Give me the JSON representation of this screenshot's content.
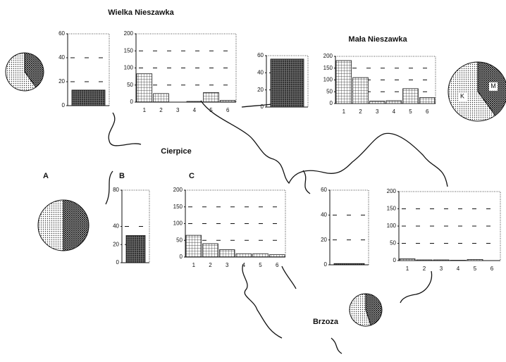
{
  "sites": [
    {
      "name": "Wielka Nieszawka",
      "pie": [
        40,
        60
      ],
      "bar": {
        "ylim": [
          0,
          60
        ],
        "yticks": [
          0,
          20,
          40,
          60
        ],
        "value": 13
      },
      "histogram": {
        "categories": [
          "1",
          "2",
          "3",
          "4",
          "5",
          "6"
        ],
        "ylim": [
          0,
          200
        ],
        "yticks": [
          0,
          50,
          100,
          150,
          200
        ],
        "values": [
          83,
          25,
          0,
          2,
          28,
          5
        ]
      }
    },
    {
      "name": "Mała Nieszawka",
      "pie": [
        40,
        60
      ],
      "pie_labels": [
        "M",
        "K"
      ],
      "bar": {
        "ylim": [
          0,
          60
        ],
        "yticks": [
          0,
          20,
          40,
          60
        ],
        "value": 56
      },
      "histogram": {
        "categories": [
          "1",
          "2",
          "3",
          "4",
          "5",
          "6"
        ],
        "ylim": [
          0,
          200
        ],
        "yticks": [
          0,
          50,
          100,
          150,
          200
        ],
        "values": [
          182,
          110,
          10,
          12,
          63,
          25
        ]
      }
    },
    {
      "name": "Cierpice",
      "pie": [
        50,
        50
      ],
      "bar": {
        "ylim": [
          0,
          80
        ],
        "yticks": [
          0,
          20,
          40,
          80
        ],
        "value": 30
      },
      "histogram": {
        "categories": [
          "1",
          "2",
          "3",
          "4",
          "5",
          "6"
        ],
        "ylim": [
          0,
          200
        ],
        "yticks": [
          0,
          50,
          100,
          150,
          200
        ],
        "values": [
          65,
          40,
          22,
          10,
          10,
          7
        ]
      }
    },
    {
      "name": "Brzoza",
      "pie": [
        45,
        55
      ],
      "bar": {
        "ylim": [
          0,
          60
        ],
        "yticks": [
          0,
          20,
          40,
          60
        ],
        "value": 1
      },
      "histogram": {
        "categories": [
          "1",
          "2",
          "3",
          "4",
          "5",
          "6"
        ],
        "ylim": [
          0,
          200
        ],
        "yticks": [
          0,
          50,
          100,
          150,
          200
        ],
        "values": [
          5,
          2,
          2,
          1,
          3,
          0
        ]
      }
    }
  ],
  "letters": [
    "A",
    "B",
    "C"
  ]
}
